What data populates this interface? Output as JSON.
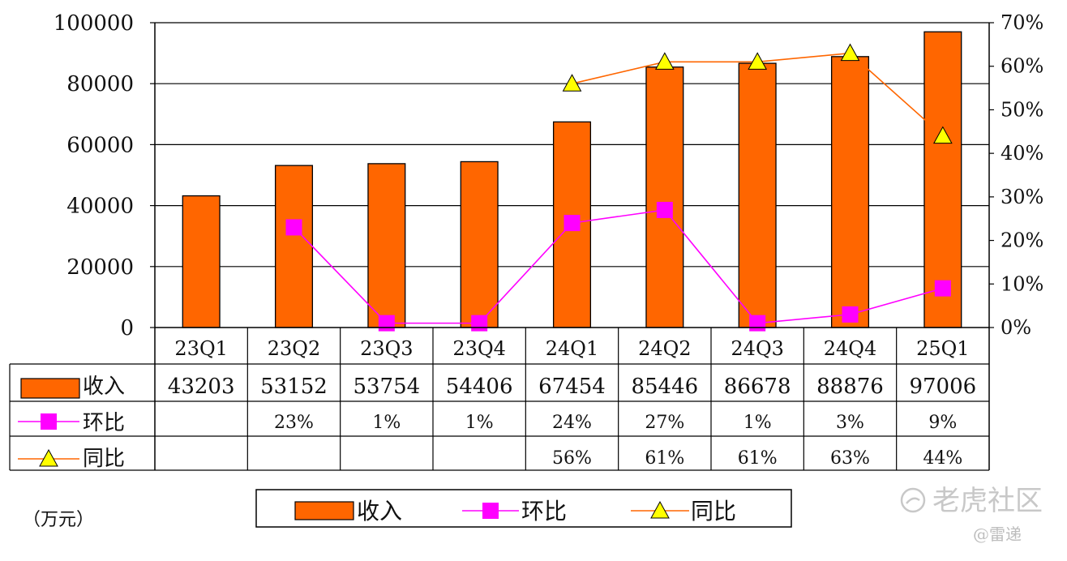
{
  "chart_data": {
    "type": "bar",
    "categories": [
      "23Q1",
      "23Q2",
      "23Q3",
      "23Q4",
      "24Q1",
      "24Q2",
      "24Q3",
      "24Q4",
      "25Q1"
    ],
    "series": [
      {
        "name": "收入",
        "type": "bar",
        "axis": "left",
        "color": "#FF6600",
        "values": [
          43203,
          53152,
          53754,
          54406,
          67454,
          85446,
          86678,
          88876,
          97006
        ]
      },
      {
        "name": "环比",
        "type": "line",
        "axis": "right",
        "marker": "square",
        "color": "#FF00FF",
        "values": [
          null,
          0.23,
          0.01,
          0.01,
          0.24,
          0.27,
          0.01,
          0.03,
          0.09
        ],
        "labels": [
          "",
          "23%",
          "1%",
          "1%",
          "24%",
          "27%",
          "1%",
          "3%",
          "9%"
        ]
      },
      {
        "name": "同比",
        "type": "line",
        "axis": "right",
        "marker": "triangle",
        "color": "#FF6600",
        "values": [
          null,
          null,
          null,
          null,
          0.56,
          0.61,
          0.61,
          0.63,
          0.44
        ],
        "labels": [
          "",
          "",
          "",
          "",
          "56%",
          "61%",
          "61%",
          "63%",
          "44%"
        ]
      }
    ],
    "ylim": [
      0,
      100000
    ],
    "yticks": [
      "0",
      "20000",
      "40000",
      "60000",
      "80000",
      "100000"
    ],
    "y2lim": [
      0,
      0.7
    ],
    "y2ticks": [
      "0%",
      "10%",
      "20%",
      "30%",
      "40%",
      "50%",
      "60%",
      "70%"
    ],
    "unit": "（万元）",
    "grid": true,
    "legend": "bottom",
    "data_table": true
  },
  "watermark": {
    "brand": "老虎社区",
    "author": "@雷递"
  }
}
